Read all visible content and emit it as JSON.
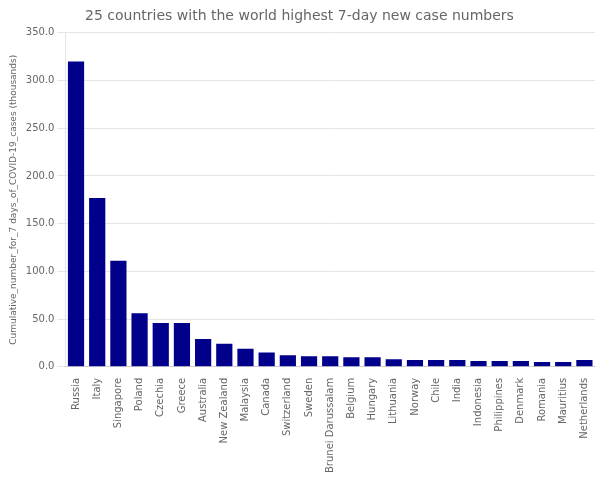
{
  "chart_data": {
    "type": "bar",
    "title": "25 countries with the world highest 7-day new case numbers",
    "ylabel": "Cumulative_number_for_7 days_of_COVID-19_cases (thousands)",
    "categories": [
      "Russia",
      "Italy",
      "Singapore",
      "Poland",
      "Czechia",
      "Greece",
      "Australia",
      "New Zealand",
      "Malaysia",
      "Canada",
      "Switzerland",
      "Sweden",
      "Brunei Darussalam",
      "Belgium",
      "Hungary",
      "Lithuania",
      "Norway",
      "Chile",
      "India",
      "Indonesia",
      "Philippines",
      "Denmark",
      "Romania",
      "Mauritius",
      "Netherlands"
    ],
    "values": [
      320,
      177,
      111,
      56,
      46,
      46,
      29,
      24,
      19,
      15,
      12,
      11,
      11,
      10,
      10,
      8,
      7,
      7,
      7,
      6,
      6,
      6,
      5,
      5,
      7
    ],
    "color": "#00008B",
    "ylim": [
      0,
      350
    ],
    "yticks": [
      {
        "value": 0,
        "label": "0.0"
      },
      {
        "value": 50,
        "label": "50.0"
      },
      {
        "value": 100,
        "label": "100.0"
      },
      {
        "value": 150,
        "label": "150.0"
      },
      {
        "value": 200,
        "label": "200.0"
      },
      {
        "value": 250,
        "label": "250.0"
      },
      {
        "value": 300,
        "label": "300.0"
      },
      {
        "value": 350,
        "label": "350.0"
      }
    ],
    "grid": true
  }
}
